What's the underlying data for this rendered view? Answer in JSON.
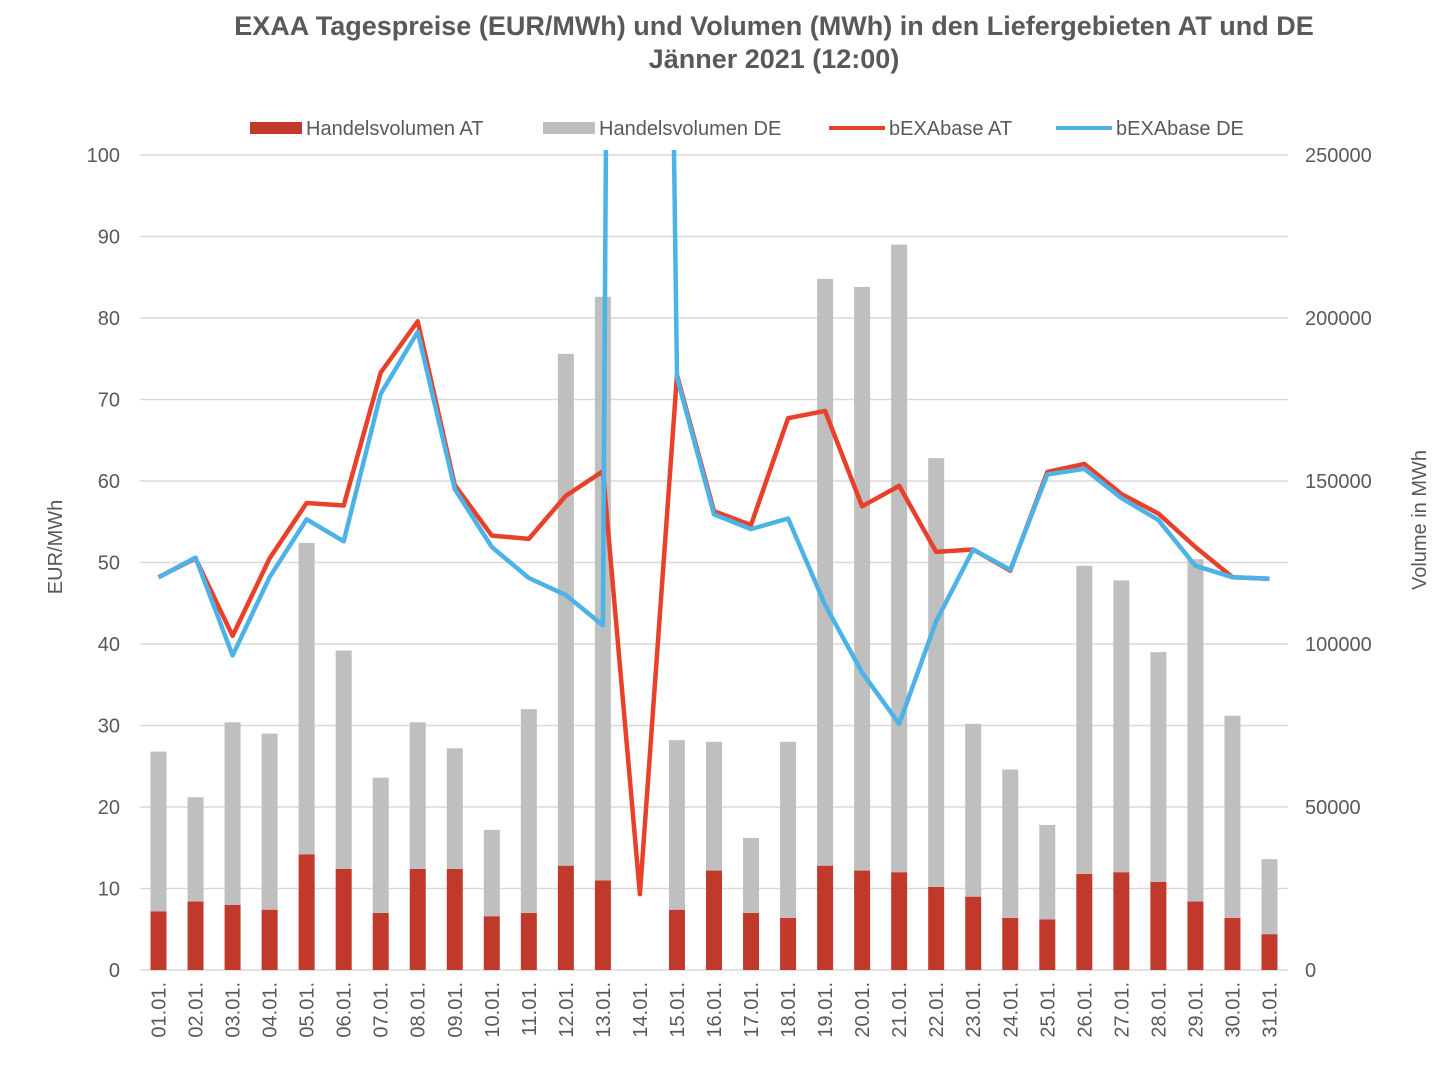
{
  "chart_data": {
    "type": "bar",
    "title": "EXAA Tagespreise (EUR/MWh) und Volumen (MWh) in den Liefergebieten AT und DE",
    "subtitle": "Jänner 2021 (12:00)",
    "ylabel_left": "EUR/MWh",
    "ylabel_right": "Volume in MWh",
    "ylim_left": [
      0,
      100
    ],
    "ylim_right": [
      0,
      250000
    ],
    "yticks_left": [
      "0",
      "10",
      "20",
      "30",
      "40",
      "50",
      "60",
      "70",
      "80",
      "90",
      "100"
    ],
    "yticks_right": [
      "0",
      "50000",
      "100000",
      "150000",
      "200000",
      "250000"
    ],
    "grid": true,
    "legend_position": "top",
    "categories": [
      "01.01.",
      "02.01.",
      "03.01.",
      "04.01.",
      "05.01.",
      "06.01.",
      "07.01.",
      "08.01.",
      "09.01.",
      "10.01.",
      "11.01.",
      "12.01.",
      "13.01.",
      "14.01.",
      "15.01.",
      "16.01.",
      "17.01.",
      "18.01.",
      "19.01.",
      "20.01.",
      "21.01.",
      "22.01.",
      "23.01.",
      "24.01.",
      "25.01.",
      "26.01.",
      "27.01.",
      "28.01.",
      "29.01.",
      "30.01.",
      "31.01."
    ],
    "series": [
      {
        "name": "Handelsvolumen AT",
        "kind": "bar",
        "axis": "right",
        "color": "#c0392b",
        "values": [
          18000,
          21000,
          20000,
          18500,
          35500,
          31000,
          17500,
          31000,
          31000,
          16500,
          17500,
          32000,
          27500,
          0,
          18500,
          30500,
          17500,
          16000,
          32000,
          30500,
          30000,
          25500,
          22500,
          16000,
          15500,
          29500,
          30000,
          27000,
          21000,
          16000,
          11000
        ]
      },
      {
        "name": "Handelsvolumen DE",
        "kind": "bar",
        "axis": "right",
        "color": "#bfbfbf",
        "values": [
          49000,
          32000,
          56000,
          54000,
          95500,
          67000,
          41500,
          45000,
          37000,
          26500,
          62500,
          157000,
          179000,
          0,
          52000,
          39500,
          23000,
          54000,
          180000,
          179000,
          192500,
          131500,
          53000,
          45500,
          29000,
          94500,
          89500,
          70500,
          105000,
          62000,
          23000
        ]
      },
      {
        "name": "bEXAbase AT",
        "kind": "line",
        "axis": "left",
        "color": "#e8402a",
        "values": [
          48.2,
          50.5,
          41.0,
          50.5,
          57.3,
          57.0,
          73.3,
          79.6,
          59.5,
          53.3,
          52.9,
          58.2,
          61.2,
          9.3,
          73.0,
          56.3,
          54.6,
          67.7,
          68.6,
          56.9,
          59.4,
          51.3,
          51.6,
          49.0,
          61.1,
          62.1,
          58.4,
          56.0,
          51.9,
          48.2,
          48.0
        ]
      },
      {
        "name": "bEXAbase DE",
        "kind": "line",
        "axis": "left",
        "color": "#4db3e6",
        "values": [
          48.2,
          50.6,
          38.6,
          48.2,
          55.3,
          52.6,
          70.7,
          78.3,
          59.0,
          51.9,
          48.1,
          46.0,
          42.3,
          null,
          72.7,
          55.9,
          54.1,
          55.4,
          44.8,
          36.5,
          30.2,
          42.8,
          51.6,
          49.1,
          60.8,
          61.5,
          57.9,
          55.2,
          49.6,
          48.2,
          48.0
        ]
      }
    ],
    "offscale": {
      "series": "bEXAbase DE",
      "from_category": "13.01.",
      "to_category": "15.01.",
      "note": "line exits above top of plot"
    }
  }
}
